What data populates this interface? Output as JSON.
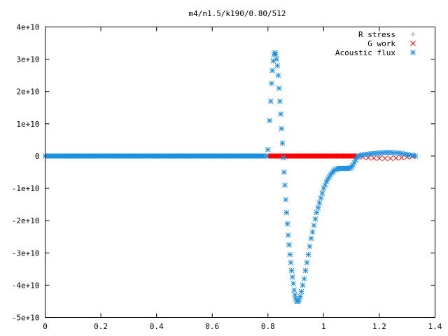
{
  "chart_data": {
    "type": "scatter",
    "title": "m4/n1.5/k190/0.80/512",
    "xlabel": "",
    "ylabel": "",
    "xlim": [
      0,
      1.4
    ],
    "ylim": [
      -50000000000.0,
      40000000000.0
    ],
    "x_ticks": [
      {
        "value": 0,
        "label": "0"
      },
      {
        "value": 0.2,
        "label": "0.2"
      },
      {
        "value": 0.4,
        "label": "0.4"
      },
      {
        "value": 0.6,
        "label": "0.6"
      },
      {
        "value": 0.8,
        "label": "0.8"
      },
      {
        "value": 1.0,
        "label": "1"
      },
      {
        "value": 1.2,
        "label": "1.2"
      },
      {
        "value": 1.4,
        "label": "1.4"
      }
    ],
    "y_ticks": [
      {
        "value": 40000000000.0,
        "label": "4e+10"
      },
      {
        "value": 30000000000.0,
        "label": "3e+10"
      },
      {
        "value": 20000000000.0,
        "label": "2e+10"
      },
      {
        "value": 10000000000.0,
        "label": "1e+10"
      },
      {
        "value": 0,
        "label": "0"
      },
      {
        "value": -10000000000.0,
        "label": "-1e+10"
      },
      {
        "value": -20000000000.0,
        "label": "-2e+10"
      },
      {
        "value": -30000000000.0,
        "label": "-3e+10"
      },
      {
        "value": -40000000000.0,
        "label": "-4e+10"
      },
      {
        "value": -50000000000.0,
        "label": "-5e+10"
      }
    ],
    "grid": false,
    "legend_position": "top-right",
    "series": [
      {
        "name": "R stress",
        "marker": "plus",
        "color": "#a0a0a0",
        "points": [
          [
            0,
            0
          ],
          [
            0.1,
            0
          ],
          [
            0.2,
            0
          ],
          [
            0.3,
            0
          ],
          [
            0.4,
            0
          ],
          [
            0.5,
            0
          ],
          [
            0.6,
            0
          ],
          [
            0.7,
            0
          ],
          [
            0.8,
            0
          ],
          [
            0.9,
            0
          ],
          [
            1.0,
            0
          ],
          [
            1.1,
            0
          ],
          [
            1.2,
            0
          ],
          [
            1.3,
            0
          ]
        ]
      },
      {
        "name": "G work",
        "marker": "cross",
        "color": "#ff0000",
        "points": [
          [
            0.8,
            0
          ],
          [
            0.82,
            0
          ],
          [
            0.84,
            0
          ],
          [
            0.86,
            0
          ],
          [
            0.88,
            0
          ],
          [
            0.9,
            0
          ],
          [
            0.92,
            0
          ],
          [
            0.94,
            0
          ],
          [
            0.96,
            0
          ],
          [
            0.98,
            0
          ],
          [
            1.0,
            0
          ],
          [
            1.02,
            0
          ],
          [
            1.04,
            0
          ],
          [
            1.06,
            0
          ],
          [
            1.08,
            0
          ],
          [
            1.1,
            0
          ],
          [
            1.12,
            0
          ],
          [
            1.14,
            -300000000.0
          ],
          [
            1.16,
            -500000000.0
          ],
          [
            1.18,
            -600000000.0
          ],
          [
            1.2,
            -700000000.0
          ],
          [
            1.22,
            -700000000.0
          ],
          [
            1.24,
            -700000000.0
          ],
          [
            1.26,
            -600000000.0
          ],
          [
            1.28,
            -500000000.0
          ],
          [
            1.3,
            -300000000.0
          ],
          [
            1.32,
            -100000000.0
          ]
        ]
      },
      {
        "name": "Acoustic flux",
        "marker": "star",
        "color": "#1e90e0",
        "points": [
          [
            0.0,
            0
          ],
          [
            0.03,
            0
          ],
          [
            0.06,
            0
          ],
          [
            0.09,
            0
          ],
          [
            0.12,
            0
          ],
          [
            0.15,
            0
          ],
          [
            0.18,
            0
          ],
          [
            0.21,
            0
          ],
          [
            0.24,
            0
          ],
          [
            0.27,
            0
          ],
          [
            0.3,
            0
          ],
          [
            0.33,
            0
          ],
          [
            0.36,
            0
          ],
          [
            0.39,
            0
          ],
          [
            0.42,
            0
          ],
          [
            0.45,
            0
          ],
          [
            0.48,
            0
          ],
          [
            0.51,
            0
          ],
          [
            0.54,
            0
          ],
          [
            0.57,
            0
          ],
          [
            0.6,
            0
          ],
          [
            0.63,
            0
          ],
          [
            0.66,
            0
          ],
          [
            0.69,
            0
          ],
          [
            0.72,
            0
          ],
          [
            0.75,
            0
          ],
          [
            0.78,
            0
          ],
          [
            0.795,
            0
          ],
          [
            0.8,
            2000000000.0
          ],
          [
            0.806,
            11000000000.0
          ],
          [
            0.81,
            17000000000.0
          ],
          [
            0.813,
            22500000000.0
          ],
          [
            0.816,
            26500000000.0
          ],
          [
            0.819,
            29500000000.0
          ],
          [
            0.822,
            31500000000.0
          ],
          [
            0.825,
            32000000000.0
          ],
          [
            0.828,
            31500000000.0
          ],
          [
            0.831,
            30000000000.0
          ],
          [
            0.834,
            28000000000.0
          ],
          [
            0.837,
            25000000000.0
          ],
          [
            0.84,
            21000000000.0
          ],
          [
            0.843,
            17000000000.0
          ],
          [
            0.846,
            13000000000.0
          ],
          [
            0.849,
            8500000000.0
          ],
          [
            0.852,
            4000000000.0
          ],
          [
            0.855,
            -500000000.0
          ],
          [
            0.858,
            -5000000000.0
          ],
          [
            0.861,
            -9000000000.0
          ],
          [
            0.864,
            -13500000000.0
          ],
          [
            0.867,
            -17500000000.0
          ],
          [
            0.87,
            -21000000000.0
          ],
          [
            0.873,
            -24500000000.0
          ],
          [
            0.876,
            -27500000000.0
          ],
          [
            0.879,
            -30500000000.0
          ],
          [
            0.882,
            -33000000000.0
          ],
          [
            0.885,
            -35500000000.0
          ],
          [
            0.888,
            -37500000000.0
          ],
          [
            0.891,
            -39500000000.0
          ],
          [
            0.894,
            -41500000000.0
          ],
          [
            0.897,
            -43000000000.0
          ],
          [
            0.9,
            -44200000000.0
          ],
          [
            0.904,
            -45000000000.0
          ],
          [
            0.908,
            -45000000000.0
          ],
          [
            0.912,
            -44500000000.0
          ],
          [
            0.916,
            -43500000000.0
          ],
          [
            0.92,
            -42000000000.0
          ],
          [
            0.925,
            -40000000000.0
          ],
          [
            0.93,
            -38000000000.0
          ],
          [
            0.935,
            -35500000000.0
          ],
          [
            0.94,
            -33000000000.0
          ],
          [
            0.945,
            -30500000000.0
          ],
          [
            0.95,
            -28000000000.0
          ],
          [
            0.955,
            -25500000000.0
          ],
          [
            0.96,
            -23500000000.0
          ],
          [
            0.965,
            -21500000000.0
          ],
          [
            0.97,
            -19500000000.0
          ],
          [
            0.975,
            -17500000000.0
          ],
          [
            0.98,
            -16000000000.0
          ],
          [
            0.985,
            -14500000000.0
          ],
          [
            0.99,
            -13000000000.0
          ],
          [
            0.995,
            -11500000000.0
          ],
          [
            1.0,
            -10000000000.0
          ],
          [
            1.005,
            -9000000000.0
          ],
          [
            1.01,
            -8000000000.0
          ],
          [
            1.015,
            -7200000000.0
          ],
          [
            1.02,
            -6500000000.0
          ],
          [
            1.025,
            -5800000000.0
          ],
          [
            1.03,
            -5200000000.0
          ],
          [
            1.035,
            -4700000000.0
          ],
          [
            1.04,
            -4300000000.0
          ],
          [
            1.045,
            -4100000000.0
          ],
          [
            1.05,
            -3900000000.0
          ],
          [
            1.055,
            -3800000000.0
          ],
          [
            1.06,
            -3800000000.0
          ],
          [
            1.065,
            -3800000000.0
          ],
          [
            1.07,
            -3800000000.0
          ],
          [
            1.075,
            -3800000000.0
          ],
          [
            1.08,
            -3800000000.0
          ],
          [
            1.085,
            -3800000000.0
          ],
          [
            1.09,
            -3800000000.0
          ],
          [
            1.095,
            -3700000000.0
          ],
          [
            1.1,
            -3400000000.0
          ],
          [
            1.105,
            -2800000000.0
          ],
          [
            1.11,
            -2000000000.0
          ],
          [
            1.115,
            -1200000000.0
          ],
          [
            1.12,
            -500000000.0
          ],
          [
            1.125,
            0.0
          ],
          [
            1.13,
            200000000.0
          ],
          [
            1.14,
            400000000.0
          ],
          [
            1.15,
            500000000.0
          ],
          [
            1.16,
            600000000.0
          ],
          [
            1.17,
            700000000.0
          ],
          [
            1.18,
            800000000.0
          ],
          [
            1.19,
            900000000.0
          ],
          [
            1.2,
            1000000000.0
          ],
          [
            1.21,
            1000000000.0
          ],
          [
            1.22,
            1100000000.0
          ],
          [
            1.23,
            1100000000.0
          ],
          [
            1.24,
            1100000000.0
          ],
          [
            1.25,
            1000000000.0
          ],
          [
            1.26,
            1000000000.0
          ],
          [
            1.27,
            900000000.0
          ],
          [
            1.28,
            800000000.0
          ],
          [
            1.29,
            600000000.0
          ],
          [
            1.3,
            500000000.0
          ],
          [
            1.31,
            300000000.0
          ],
          [
            1.32,
            200000000.0
          ],
          [
            1.33,
            0.0
          ]
        ]
      }
    ]
  }
}
